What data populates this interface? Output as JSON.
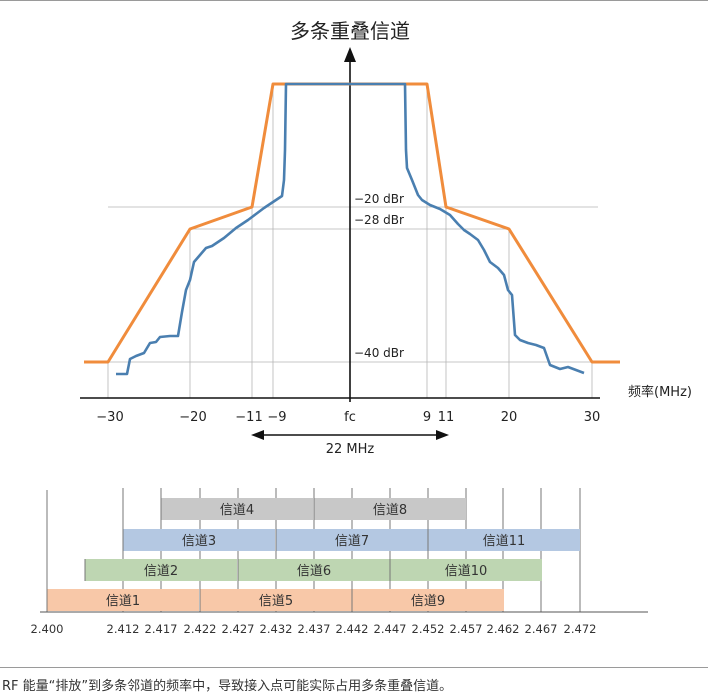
{
  "title": "多条重叠信道",
  "x_axis_label": "频率(MHz)",
  "x_ticks": [
    "−30",
    "−20",
    "−11",
    "−9",
    "fc",
    "9",
    "11",
    "20",
    "30"
  ],
  "levels": [
    "−20 dBr",
    "−28 dBr",
    "−40 dBr"
  ],
  "bandwidth_label": "22 MHz",
  "colors": {
    "mask": "#f08c3c",
    "spectrum": "#4a7fb0",
    "row4_8": "#c8c8c8",
    "row3_7_11": "#b4c8e2",
    "row2_6_10": "#bed6b2",
    "row1_5_9": "#f8c8a8"
  },
  "channel_rows": [
    {
      "channels": [
        "信道4",
        "信道8"
      ]
    },
    {
      "channels": [
        "信道3",
        "信道7",
        "信道11"
      ]
    },
    {
      "channels": [
        "信道2",
        "信道6",
        "信道10"
      ]
    },
    {
      "channels": [
        "信道1",
        "信道5",
        "信道9"
      ]
    }
  ],
  "frequency_ticks": [
    "2.400",
    "2.412",
    "2.417",
    "2.422",
    "2.427",
    "2.432",
    "2.437",
    "2.442",
    "2.447",
    "2.452",
    "2.457",
    "2.462",
    "2.467",
    "2.472"
  ],
  "caption": "RF 能量“排放”到多条邻道的频率中，导致接入点可能实际占用多条重叠信道。"
}
